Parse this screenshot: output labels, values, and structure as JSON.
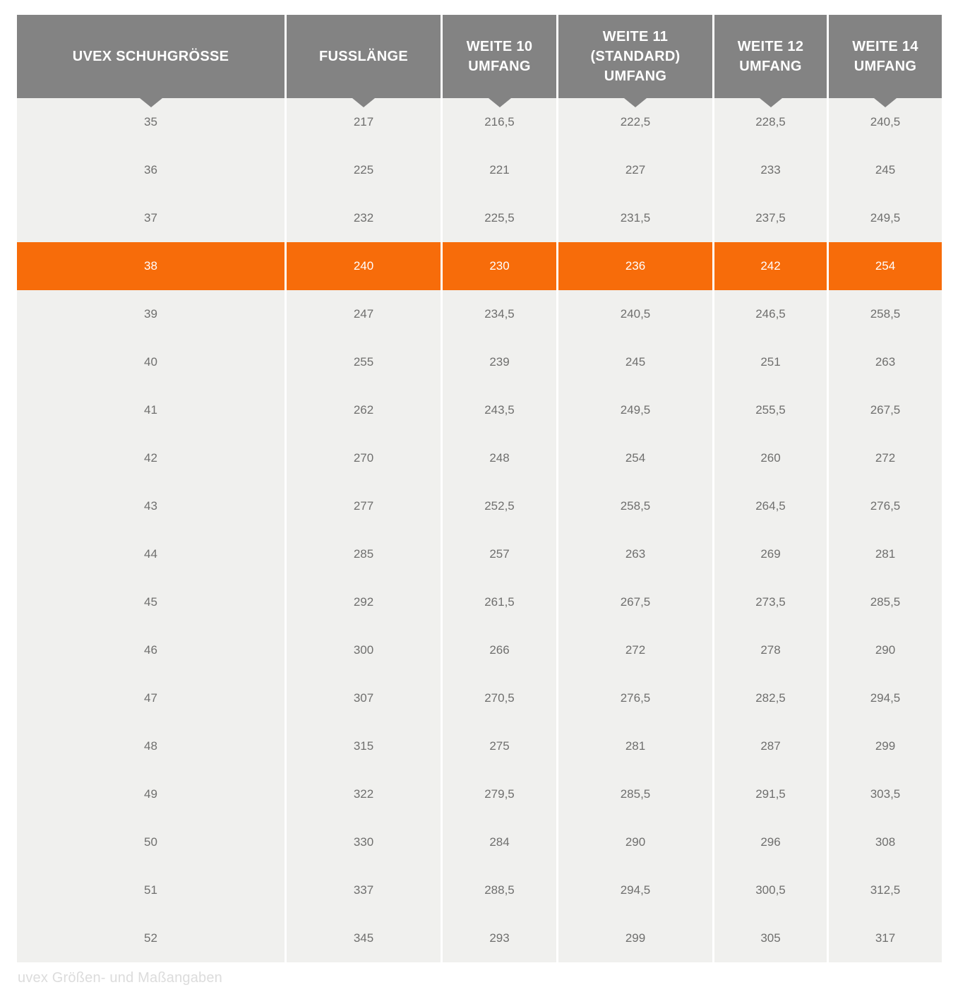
{
  "colors": {
    "header_bg": "#838383",
    "header_text": "#ffffff",
    "row_bg": "#f0f0ee",
    "cell_text": "#6f6f6e",
    "highlight_bg": "#f76c0a",
    "highlight_text": "#ffffff",
    "caption_text": "#dcdcdc",
    "page_bg": "#ffffff"
  },
  "caption": "uvex Größen- und Maßangaben",
  "table": {
    "header_labels": [
      "UVEX SCHUHGRÖSSE",
      "FUSSLÄNGE",
      "WEITE 10\nUMFANG",
      "WEITE 11\n(STANDARD)\nUMFANG",
      "WEITE 12\nUMFANG",
      "WEITE 14\nUMFANG"
    ]
  },
  "chart_data": {
    "type": "table",
    "title": "uvex Größen- und Maßangaben",
    "columns": [
      "UVEX SCHUHGRÖSSE",
      "FUSSLÄNGE",
      "WEITE 10 UMFANG",
      "WEITE 11 (STANDARD) UMFANG",
      "WEITE 12 UMFANG",
      "WEITE 14 UMFANG"
    ],
    "highlighted_row_index": 3,
    "highlighted_size": "38",
    "rows": [
      [
        "35",
        "217",
        "216,5",
        "222,5",
        "228,5",
        "240,5"
      ],
      [
        "36",
        "225",
        "221",
        "227",
        "233",
        "245"
      ],
      [
        "37",
        "232",
        "225,5",
        "231,5",
        "237,5",
        "249,5"
      ],
      [
        "38",
        "240",
        "230",
        "236",
        "242",
        "254"
      ],
      [
        "39",
        "247",
        "234,5",
        "240,5",
        "246,5",
        "258,5"
      ],
      [
        "40",
        "255",
        "239",
        "245",
        "251",
        "263"
      ],
      [
        "41",
        "262",
        "243,5",
        "249,5",
        "255,5",
        "267,5"
      ],
      [
        "42",
        "270",
        "248",
        "254",
        "260",
        "272"
      ],
      [
        "43",
        "277",
        "252,5",
        "258,5",
        "264,5",
        "276,5"
      ],
      [
        "44",
        "285",
        "257",
        "263",
        "269",
        "281"
      ],
      [
        "45",
        "292",
        "261,5",
        "267,5",
        "273,5",
        "285,5"
      ],
      [
        "46",
        "300",
        "266",
        "272",
        "278",
        "290"
      ],
      [
        "47",
        "307",
        "270,5",
        "276,5",
        "282,5",
        "294,5"
      ],
      [
        "48",
        "315",
        "275",
        "281",
        "287",
        "299"
      ],
      [
        "49",
        "322",
        "279,5",
        "285,5",
        "291,5",
        "303,5"
      ],
      [
        "50",
        "330",
        "284",
        "290",
        "296",
        "308"
      ],
      [
        "51",
        "337",
        "288,5",
        "294,5",
        "300,5",
        "312,5"
      ],
      [
        "52",
        "345",
        "293",
        "299",
        "305",
        "317"
      ]
    ]
  }
}
